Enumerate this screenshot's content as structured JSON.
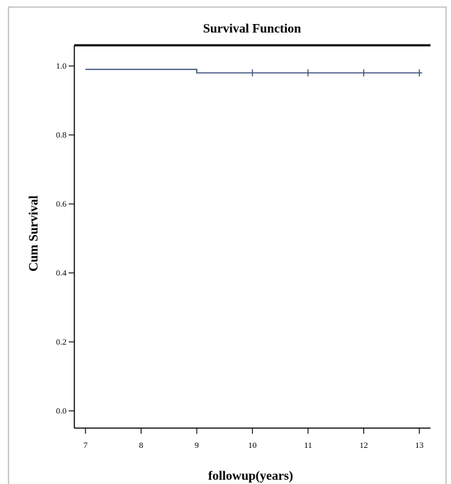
{
  "chart_data": {
    "type": "line",
    "title": "Survival Function",
    "xlabel": "followup(years)",
    "ylabel": "Cum Survival",
    "xlim": [
      6.8,
      13.2
    ],
    "ylim": [
      -0.05,
      1.06
    ],
    "x_ticks": [
      7,
      8,
      9,
      10,
      11,
      12,
      13
    ],
    "x_tick_labels": [
      "7",
      "8",
      "9",
      "10",
      "11",
      "12",
      "13"
    ],
    "y_ticks": [
      0.0,
      0.2,
      0.4,
      0.6,
      0.8,
      1.0
    ],
    "y_tick_labels": [
      "0.0",
      "0.2",
      "0.4",
      "0.6",
      "0.8",
      "1.0"
    ],
    "grid": false,
    "color": "#3d4f7c",
    "series": [
      {
        "step_points": [
          {
            "x": 7,
            "y": 0.99
          },
          {
            "x": 9,
            "y": 0.99
          },
          {
            "x": 9,
            "y": 0.98
          },
          {
            "x": 13.05,
            "y": 0.98
          }
        ],
        "censored": [
          {
            "x": 10,
            "y": 0.98
          },
          {
            "x": 11,
            "y": 0.98
          },
          {
            "x": 12,
            "y": 0.98
          },
          {
            "x": 13,
            "y": 0.98
          }
        ]
      }
    ]
  }
}
